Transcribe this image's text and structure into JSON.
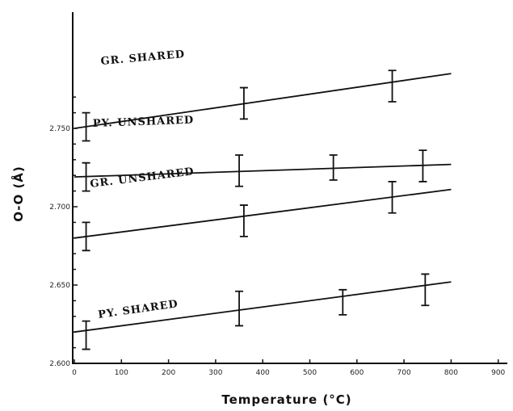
{
  "chart_data": {
    "type": "line",
    "title": "",
    "xlabel": "Temperature (°C)",
    "ylabel": "O-O (Å)",
    "xlim": [
      0,
      950
    ],
    "ylim": [
      2.6,
      2.78
    ],
    "xticks": [
      "0",
      "100",
      "200",
      "300",
      "400",
      "500",
      "600",
      "700",
      "800",
      "900"
    ],
    "xtick_values": [
      0,
      100,
      200,
      300,
      400,
      500,
      600,
      700,
      800,
      900
    ],
    "yticks": [
      "2.600",
      "2.650",
      "2.700",
      "2.750"
    ],
    "ytick_values": [
      2.6,
      2.65,
      2.7,
      2.75
    ],
    "grid": false,
    "series": [
      {
        "name": "GR. SHARED",
        "line": [
          [
            0,
            2.75
          ],
          [
            800,
            2.785
          ]
        ],
        "points": [
          {
            "x": 25,
            "y": 2.751,
            "err": 0.009
          },
          {
            "x": 360,
            "y": 2.766,
            "err": 0.01
          },
          {
            "x": 675,
            "y": 2.777,
            "err": 0.01
          }
        ]
      },
      {
        "name": "PY. UNSHARED",
        "line": [
          [
            0,
            2.719
          ],
          [
            800,
            2.727
          ]
        ],
        "points": [
          {
            "x": 25,
            "y": 2.719,
            "err": 0.009
          },
          {
            "x": 350,
            "y": 2.723,
            "err": 0.01
          },
          {
            "x": 550,
            "y": 2.725,
            "err": 0.008
          },
          {
            "x": 740,
            "y": 2.726,
            "err": 0.01
          }
        ]
      },
      {
        "name": "GR. UNSHARED",
        "line": [
          [
            0,
            2.68
          ],
          [
            800,
            2.711
          ]
        ],
        "points": [
          {
            "x": 25,
            "y": 2.681,
            "err": 0.009
          },
          {
            "x": 360,
            "y": 2.691,
            "err": 0.01
          },
          {
            "x": 675,
            "y": 2.706,
            "err": 0.01
          }
        ]
      },
      {
        "name": "PY. SHARED",
        "line": [
          [
            0,
            2.62
          ],
          [
            800,
            2.652
          ]
        ],
        "points": [
          {
            "x": 25,
            "y": 2.618,
            "err": 0.009
          },
          {
            "x": 350,
            "y": 2.635,
            "err": 0.011
          },
          {
            "x": 570,
            "y": 2.639,
            "err": 0.008
          },
          {
            "x": 745,
            "y": 2.647,
            "err": 0.01
          }
        ]
      }
    ]
  }
}
